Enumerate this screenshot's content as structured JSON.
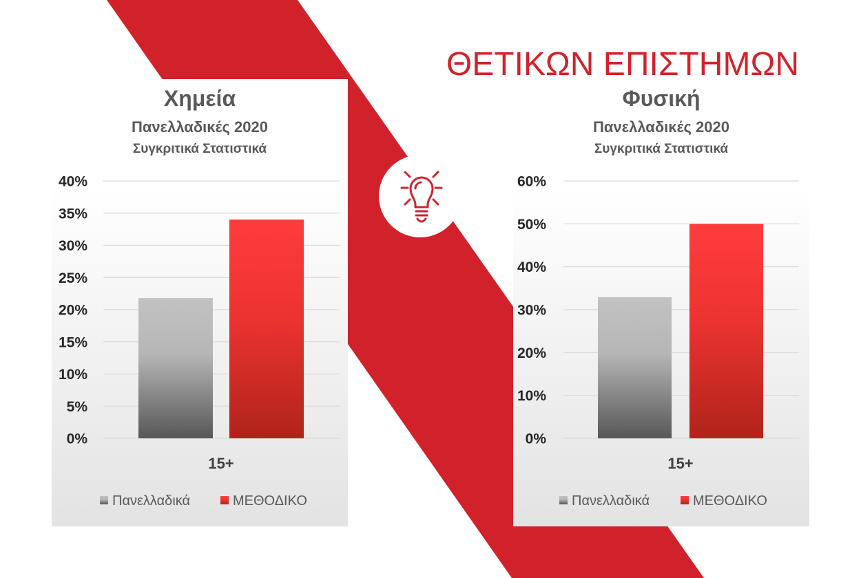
{
  "page": {
    "title": "ΘΕΤΙΚΩΝ ΕΠΙΣΤΗΜΩΝ"
  },
  "colors": {
    "band": "#d1222b",
    "title": "#d32229",
    "text": "#595959"
  },
  "icon": {
    "name": "lightbulb-icon"
  },
  "chart_data": [
    {
      "type": "bar",
      "title": "Χημεία",
      "subtitle": "Πανελλαδικές 2020",
      "subtitle_2": "Συγκριτικά Στατιστικά",
      "categories": [
        "15+"
      ],
      "series": [
        {
          "name": "Πανελλαδικά",
          "values": [
            21.8
          ],
          "color": "#a6a6a6"
        },
        {
          "name": "ΜΕΘΟΔΙΚΟ",
          "values": [
            34
          ],
          "color": "#e8302f"
        }
      ],
      "ylim": [
        0,
        40
      ],
      "yticks": [
        0,
        5,
        10,
        15,
        20,
        25,
        30,
        35,
        40
      ],
      "ytick_labels": [
        "0%",
        "5%",
        "10%",
        "15%",
        "20%",
        "25%",
        "30%",
        "35%",
        "40%"
      ],
      "grid": true,
      "legend": "bottom"
    },
    {
      "type": "bar",
      "title": "Φυσική",
      "subtitle": "Πανελλαδικές 2020",
      "subtitle_2": "Συγκριτικά Στατιστικά",
      "categories": [
        "15+"
      ],
      "series": [
        {
          "name": "Πανελλαδικά",
          "values": [
            32.9
          ],
          "color": "#a6a6a6"
        },
        {
          "name": "ΜΕΘΟΔΙΚΟ",
          "values": [
            50
          ],
          "color": "#e8302f"
        }
      ],
      "ylim": [
        0,
        60
      ],
      "yticks": [
        0,
        10,
        20,
        30,
        40,
        50,
        60
      ],
      "ytick_labels": [
        "0%",
        "10%",
        "20%",
        "30%",
        "40%",
        "50%",
        "60%"
      ],
      "grid": true,
      "legend": "bottom"
    }
  ]
}
